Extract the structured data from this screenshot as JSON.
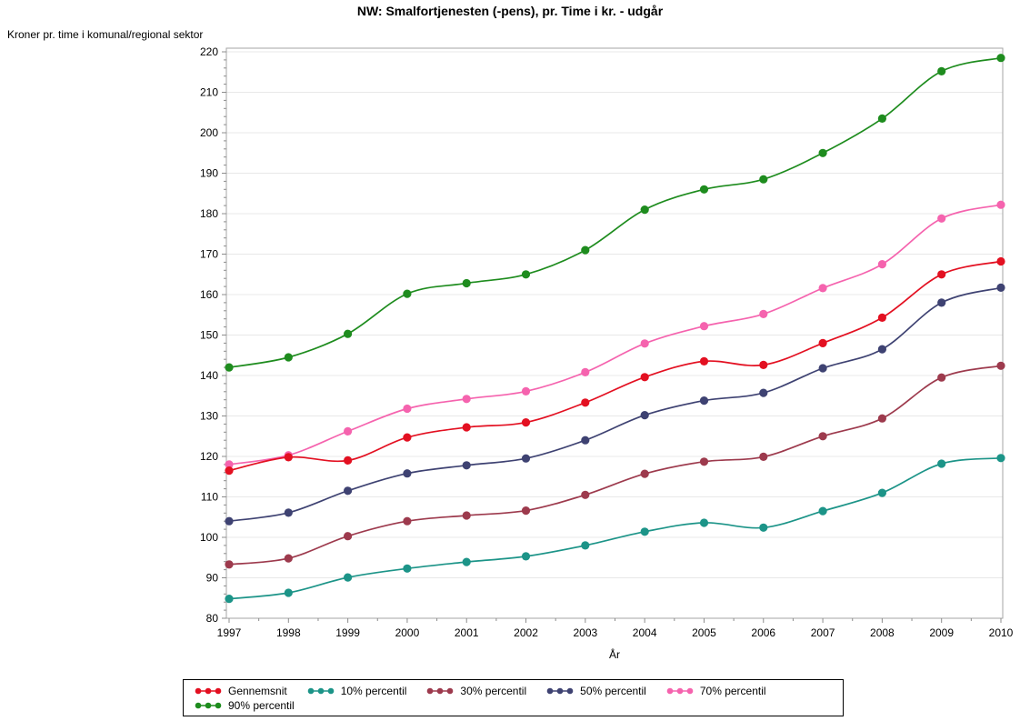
{
  "title": "NW: Smalfortjenesten (-pens), pr. Time i kr. - udgår",
  "chart_data": {
    "type": "line",
    "title": "NW: Smalfortjenesten (-pens), pr. Time i kr. - udgår",
    "ylabel": "Kroner pr. time i komunal/regional sektor",
    "xlabel": "År",
    "x": [
      1997,
      1998,
      1999,
      2000,
      2001,
      2002,
      2003,
      2004,
      2005,
      2006,
      2007,
      2008,
      2009,
      2010
    ],
    "ylim": [
      80,
      220
    ],
    "ytick_step": 10,
    "ytick_minor_step": 2,
    "xtick_minor_step": 0.5,
    "grid": "horizontal",
    "legend_position": "bottom",
    "marker": "filled-circle",
    "series": [
      {
        "name": "Gennemsnit",
        "color": "#E31021",
        "values": [
          116.5,
          119.8,
          119.0,
          124.7,
          127.2,
          128.4,
          133.3,
          139.6,
          143.5,
          142.6,
          148.0,
          154.3,
          165.0,
          168.2
        ]
      },
      {
        "name": "10% percentil",
        "color": "#1C9488",
        "values": [
          84.8,
          86.3,
          90.1,
          92.3,
          93.9,
          95.3,
          98.0,
          101.4,
          103.6,
          102.4,
          106.5,
          111.0,
          118.2,
          119.6
        ]
      },
      {
        "name": "30% percentil",
        "color": "#9D3A4D",
        "values": [
          93.3,
          94.8,
          100.3,
          104.0,
          105.4,
          106.6,
          110.5,
          115.7,
          118.7,
          119.9,
          125.0,
          129.4,
          139.5,
          142.4
        ]
      },
      {
        "name": "50% percentil",
        "color": "#3E4272",
        "values": [
          104.0,
          106.1,
          111.5,
          115.8,
          117.8,
          119.5,
          124.0,
          130.2,
          133.8,
          135.7,
          141.8,
          146.5,
          158.0,
          161.7
        ]
      },
      {
        "name": "70% percentil",
        "color": "#F563AE",
        "values": [
          118.0,
          120.3,
          126.2,
          131.8,
          134.2,
          136.1,
          140.8,
          147.9,
          152.2,
          155.2,
          161.6,
          167.5,
          178.8,
          182.2
        ]
      },
      {
        "name": "90% percentil",
        "color": "#1E8C1E",
        "values": [
          142.0,
          144.5,
          150.3,
          160.2,
          162.8,
          165.0,
          171.0,
          181.0,
          186.0,
          188.5,
          195.0,
          203.5,
          215.2,
          218.5
        ]
      }
    ],
    "style": {
      "grid_color": "#E8E8E8",
      "frame_color": "#A6A6A6",
      "tick_color": "#8C8C8C",
      "text_color": "#000000",
      "background": "#FFFFFF"
    }
  }
}
